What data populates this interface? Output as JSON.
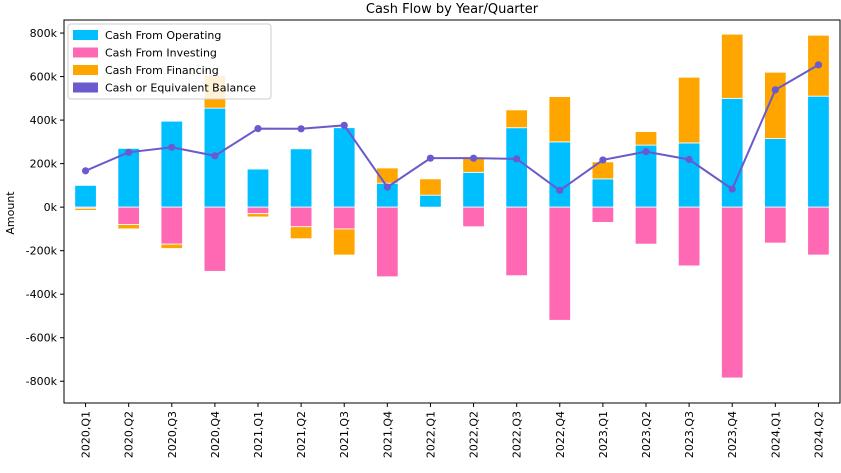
{
  "chart_data": {
    "type": "bar",
    "title": "Cash Flow by Year/Quarter",
    "xlabel": "",
    "ylabel": "Amount",
    "ylim": [
      -900000,
      860000
    ],
    "yticks": [
      -800000,
      -600000,
      -400000,
      -200000,
      0,
      200000,
      400000,
      600000,
      800000
    ],
    "ytick_labels": [
      "-800k",
      "-600k",
      "-400k",
      "-200k",
      "0k",
      "200k",
      "400k",
      "600k",
      "800k"
    ],
    "categories": [
      "2020,Q1",
      "2020,Q2",
      "2020,Q3",
      "2020,Q4",
      "2021,Q1",
      "2021,Q2",
      "2021,Q3",
      "2021,Q4",
      "2022,Q1",
      "2022,Q2",
      "2022,Q3",
      "2022,Q4",
      "2023,Q1",
      "2023,Q2",
      "2023,Q3",
      "2023,Q4",
      "2024,Q1",
      "2024,Q2"
    ],
    "stacked": true,
    "legend_position": "top-left",
    "grid": false,
    "series": [
      {
        "name": "Cash From Operating",
        "kind": "bar",
        "color": "#00bfff",
        "values": [
          100000,
          270000,
          395000,
          455000,
          175000,
          268000,
          365000,
          110000,
          55000,
          160000,
          365000,
          300000,
          130000,
          285000,
          295000,
          500000,
          315000,
          510000
        ]
      },
      {
        "name": "Cash From Investing",
        "kind": "bar",
        "color": "#ff69b4",
        "values": [
          -5000,
          -80000,
          -170000,
          -295000,
          -30000,
          -90000,
          -100000,
          -320000,
          0,
          -90000,
          -315000,
          -520000,
          -70000,
          -170000,
          -270000,
          -785000,
          -165000,
          -220000
        ]
      },
      {
        "name": "Cash From Financing",
        "kind": "bar",
        "color": "#ffa500",
        "values": [
          -10000,
          -20000,
          -20000,
          150000,
          -15000,
          -55000,
          -120000,
          70000,
          75000,
          70000,
          82000,
          208000,
          78000,
          62000,
          302000,
          295000,
          305000,
          280000
        ]
      },
      {
        "name": "Cash or Equivalent Balance",
        "kind": "line",
        "color": "#6a5acd",
        "values": [
          167000,
          252000,
          275000,
          236000,
          361000,
          360000,
          376000,
          92000,
          225000,
          225000,
          222000,
          77000,
          217000,
          255000,
          219000,
          83000,
          539000,
          654000
        ]
      }
    ]
  }
}
